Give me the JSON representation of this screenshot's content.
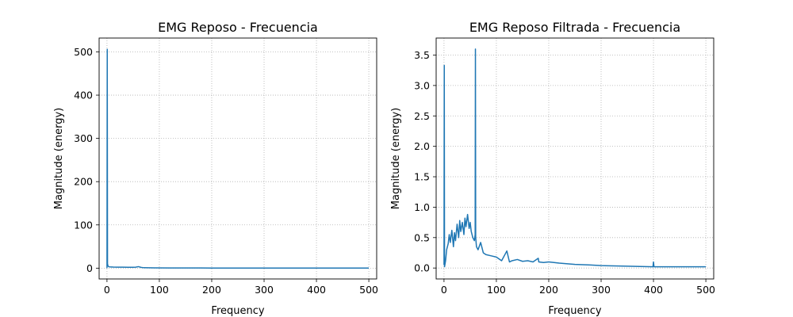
{
  "chart_data": [
    {
      "type": "line",
      "title": "EMG Reposo - Frecuencia",
      "xlabel": "Frequency",
      "ylabel": "Magnitude (energy)",
      "xlim": [
        -15,
        515
      ],
      "ylim": [
        -25,
        532
      ],
      "grid": true,
      "xticks": [
        0,
        100,
        200,
        300,
        400,
        500
      ],
      "yticks": [
        0,
        100,
        200,
        300,
        400,
        500
      ],
      "ytick_labels": [
        "0",
        "100",
        "200",
        "300",
        "400",
        "500"
      ],
      "color": "#1f77b4",
      "series": [
        {
          "x": [
            0,
            0.5,
            1,
            2,
            3,
            5,
            8,
            12,
            20,
            30,
            40,
            50,
            55,
            60,
            65,
            70,
            90,
            120,
            200,
            300,
            400,
            500
          ],
          "y": [
            0,
            506,
            10,
            5,
            3.5,
            3,
            2.8,
            2.5,
            2.3,
            2.2,
            2.0,
            2.0,
            2.2,
            3.5,
            1.8,
            1.0,
            0.6,
            0.4,
            0.3,
            0.2,
            0.15,
            0.1
          ]
        }
      ]
    },
    {
      "type": "line",
      "title": "EMG Reposo Filtrada - Frecuencia",
      "xlabel": "Frequency",
      "ylabel": "Magnitude (energy)",
      "xlim": [
        -15,
        515
      ],
      "ylim": [
        -0.18,
        3.78
      ],
      "grid": true,
      "xticks": [
        0,
        100,
        200,
        300,
        400,
        500
      ],
      "yticks": [
        0,
        0.5,
        1.0,
        1.5,
        2.0,
        2.5,
        3.0,
        3.5
      ],
      "ytick_labels": [
        "0.0",
        "0.5",
        "1.0",
        "1.5",
        "2.0",
        "2.5",
        "3.0",
        "3.5"
      ],
      "color": "#1f77b4",
      "series": [
        {
          "x": [
            0,
            0.5,
            1,
            3,
            5,
            8,
            10,
            12,
            15,
            18,
            20,
            22,
            25,
            28,
            30,
            32,
            35,
            38,
            40,
            42,
            45,
            48,
            50,
            52,
            55,
            58,
            59.5,
            60,
            60.5,
            62,
            65,
            70,
            75,
            80,
            90,
            100,
            110,
            120,
            125,
            130,
            140,
            150,
            160,
            170,
            180,
            181,
            190,
            200,
            220,
            250,
            280,
            300,
            350,
            399,
            400,
            401,
            450,
            500
          ],
          "y": [
            0.05,
            3.33,
            0.02,
            0.12,
            0.3,
            0.4,
            0.55,
            0.42,
            0.62,
            0.35,
            0.58,
            0.45,
            0.72,
            0.5,
            0.78,
            0.6,
            0.75,
            0.55,
            0.82,
            0.68,
            0.88,
            0.65,
            0.75,
            0.6,
            0.5,
            0.45,
            0.55,
            3.6,
            0.5,
            0.35,
            0.3,
            0.42,
            0.25,
            0.22,
            0.2,
            0.18,
            0.12,
            0.28,
            0.1,
            0.12,
            0.14,
            0.11,
            0.12,
            0.1,
            0.16,
            0.1,
            0.09,
            0.1,
            0.08,
            0.06,
            0.05,
            0.04,
            0.03,
            0.02,
            0.1,
            0.02,
            0.02,
            0.02
          ]
        }
      ]
    }
  ]
}
